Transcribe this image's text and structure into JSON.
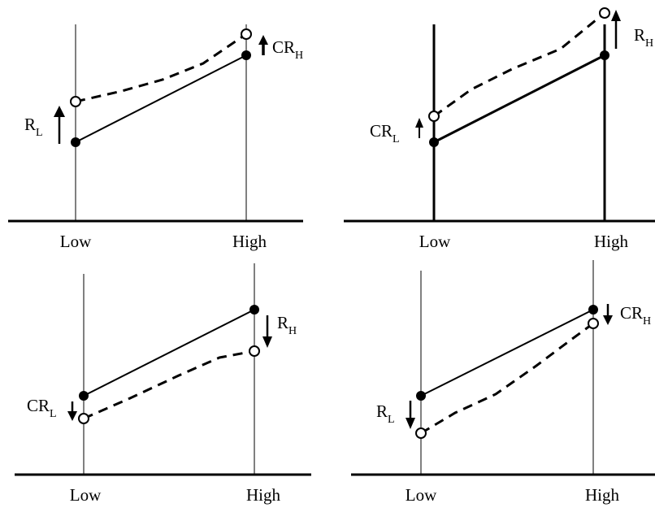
{
  "panels": [
    {
      "x_labels": [
        "Low",
        "High"
      ],
      "annotations": [
        {
          "text": "R",
          "subscript": "L",
          "direction": "up"
        },
        {
          "text": "CR",
          "subscript": "H",
          "direction": "up"
        }
      ]
    },
    {
      "x_labels": [
        "Low",
        "High"
      ],
      "annotations": [
        {
          "text": "CR",
          "subscript": "L",
          "direction": "up"
        },
        {
          "text": "R",
          "subscript": "H",
          "direction": "up"
        }
      ]
    },
    {
      "x_labels": [
        "Low",
        "High"
      ],
      "annotations": [
        {
          "text": "CR",
          "subscript": "L",
          "direction": "down"
        },
        {
          "text": "R",
          "subscript": "H",
          "direction": "down"
        }
      ]
    },
    {
      "x_labels": [
        "Low",
        "High"
      ],
      "annotations": [
        {
          "text": "R",
          "subscript": "L",
          "direction": "down"
        },
        {
          "text": "CR",
          "subscript": "H",
          "direction": "down"
        }
      ]
    }
  ],
  "colors": {
    "ink": "#000000",
    "background": "#ffffff"
  }
}
